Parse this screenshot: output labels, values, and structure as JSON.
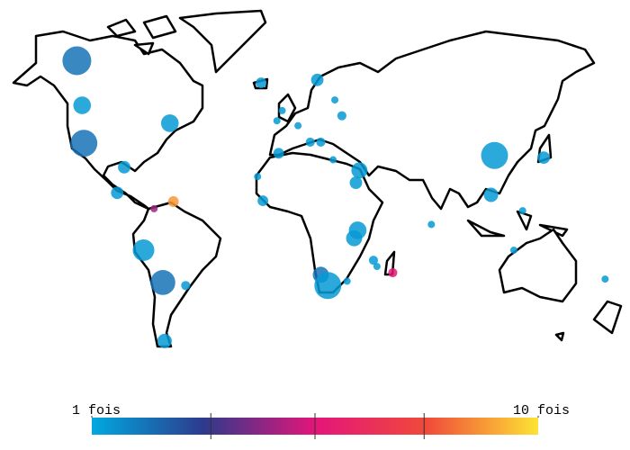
{
  "map": {
    "points": [
      {
        "lon": -128,
        "lat": 68,
        "value": 2.1,
        "size": 16
      },
      {
        "lon": -125,
        "lat": 53,
        "value": 1.3,
        "size": 6
      },
      {
        "lon": -124,
        "lat": 37.5,
        "value": 2.1,
        "size": 14
      },
      {
        "lon": -75,
        "lat": 46,
        "value": 1.3,
        "size": 6
      },
      {
        "lon": -101,
        "lat": 26.5,
        "value": 1.3,
        "size": 3
      },
      {
        "lon": -105,
        "lat": 14,
        "value": 1.3,
        "size": 3
      },
      {
        "lon": -73,
        "lat": 9.6,
        "value": 8.9,
        "size": 2.2
      },
      {
        "lon": -84,
        "lat": 6,
        "value": 4.6,
        "size": 1
      },
      {
        "lon": -90,
        "lat": -15,
        "value": 1.3,
        "size": 9
      },
      {
        "lon": -79,
        "lat": -30.6,
        "value": 2.1,
        "size": 12
      },
      {
        "lon": -66,
        "lat": -32,
        "value": 1.3,
        "size": 1.6
      },
      {
        "lon": -78,
        "lat": -55,
        "value": 1.3,
        "size": 4
      },
      {
        "lon": -23,
        "lat": 61,
        "value": 1.3,
        "size": 2.2
      },
      {
        "lon": 9,
        "lat": 62,
        "value": 1.3,
        "size": 3
      },
      {
        "lon": 19,
        "lat": 55,
        "value": 1.3,
        "size": 1
      },
      {
        "lon": 23,
        "lat": 49,
        "value": 1.3,
        "size": 1.6
      },
      {
        "lon": -14,
        "lat": 47,
        "value": 1.3,
        "size": 1
      },
      {
        "lon": -2,
        "lat": 45,
        "value": 1.3,
        "size": 1
      },
      {
        "lon": -11,
        "lat": 51,
        "value": 1.3,
        "size": 1
      },
      {
        "lon": 5,
        "lat": 38,
        "value": 1.3,
        "size": 1.6
      },
      {
        "lon": 11,
        "lat": 38,
        "value": 1.3,
        "size": 1.6
      },
      {
        "lon": -13,
        "lat": 33,
        "value": 1.3,
        "size": 2.2
      },
      {
        "lon": 18,
        "lat": 30,
        "value": 1.3,
        "size": 1
      },
      {
        "lon": 33,
        "lat": 25,
        "value": 1.3,
        "size": 5
      },
      {
        "lon": 31,
        "lat": 19,
        "value": 1.3,
        "size": 3
      },
      {
        "lon": -25,
        "lat": 22,
        "value": 1.3,
        "size": 1
      },
      {
        "lon": -22,
        "lat": 10,
        "value": 1.3,
        "size": 2.2
      },
      {
        "lon": 32,
        "lat": -5,
        "value": 1.3,
        "size": 6
      },
      {
        "lon": 30,
        "lat": -9,
        "value": 1.3,
        "size": 5
      },
      {
        "lon": 11,
        "lat": -27,
        "value": 2.1,
        "size": 5
      },
      {
        "lon": 15,
        "lat": -32,
        "value": 1.3,
        "size": 14
      },
      {
        "lon": 26,
        "lat": -30,
        "value": 1.3,
        "size": 1
      },
      {
        "lon": 41,
        "lat": -20,
        "value": 1.3,
        "size": 1.6
      },
      {
        "lon": 43,
        "lat": -23,
        "value": 1.3,
        "size": 1
      },
      {
        "lon": 52,
        "lat": -26,
        "value": 5.7,
        "size": 1.6
      },
      {
        "lon": 74,
        "lat": -2,
        "value": 1.3,
        "size": 1
      },
      {
        "lon": 110,
        "lat": 32,
        "value": 1.3,
        "size": 14
      },
      {
        "lon": 108,
        "lat": 13,
        "value": 1.3,
        "size": 4
      },
      {
        "lon": 138,
        "lat": 31,
        "value": 1.3,
        "size": 3
      },
      {
        "lon": 126,
        "lat": 5,
        "value": 1.3,
        "size": 1
      },
      {
        "lon": 121,
        "lat": -15,
        "value": 1.3,
        "size": 1
      },
      {
        "lon": 173,
        "lat": -29,
        "value": 1.3,
        "size": 1
      }
    ],
    "colorbar": {
      "range": [
        1,
        10
      ],
      "labels": [
        {
          "value": 1,
          "label": "1 fois"
        },
        {
          "value": 10,
          "label": "10 fois"
        }
      ],
      "ticks": [
        3.4,
        5.5,
        7.7
      ],
      "colors": [
        "#00a9e0",
        "#2d3a8c",
        "#e4157a",
        "#f04a3a",
        "#fde333"
      ]
    }
  }
}
